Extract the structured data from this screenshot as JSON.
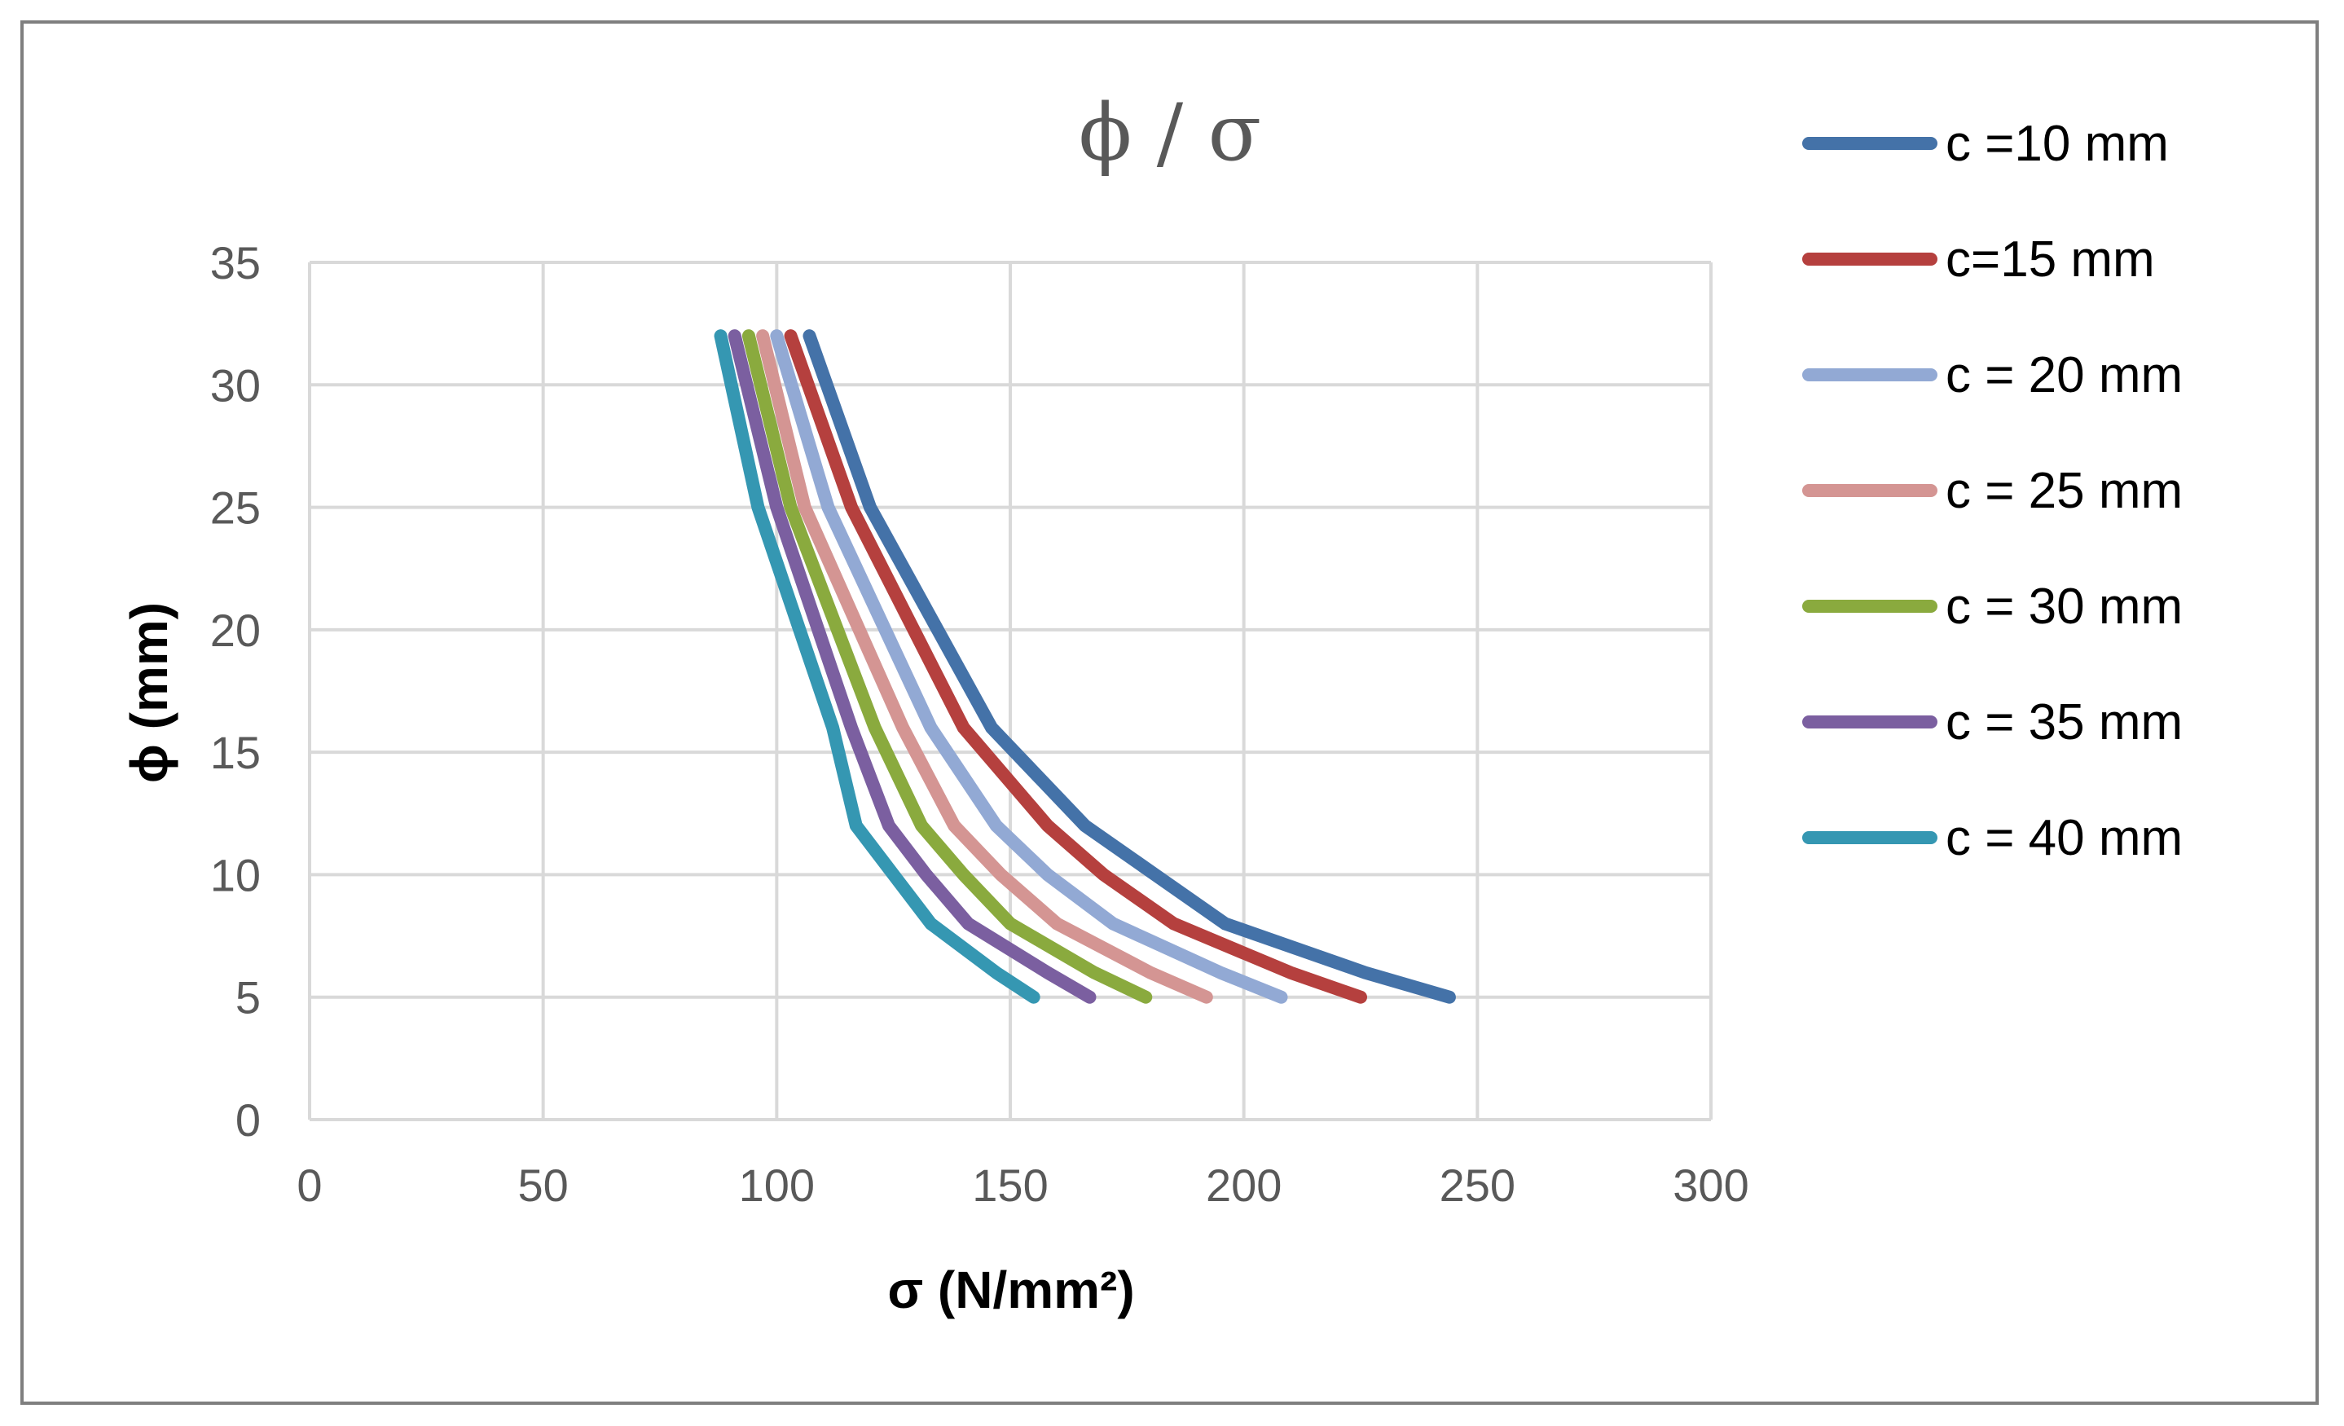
{
  "chart_data": {
    "type": "line",
    "title": "ϕ / σ",
    "xlabel": "σ (N/mm²)",
    "ylabel": "ϕ (mm)",
    "xlim": [
      0,
      300
    ],
    "ylim": [
      0,
      35
    ],
    "xticks": [
      0,
      50,
      100,
      150,
      200,
      250,
      300
    ],
    "yticks": [
      0,
      5,
      10,
      15,
      20,
      25,
      30,
      35
    ],
    "grid": true,
    "legend_position": "right",
    "y_points": [
      5,
      6,
      8,
      10,
      12,
      16,
      25,
      32
    ],
    "series": [
      {
        "name": "c =10 mm",
        "color": "#4472a8",
        "x": [
          244,
          226,
          196,
          181,
          166,
          146,
          120,
          107
        ]
      },
      {
        "name": "c=15 mm",
        "color": "#b5403e",
        "x": [
          225,
          210,
          185,
          170,
          158,
          140,
          116,
          103
        ]
      },
      {
        "name": "c = 20 mm",
        "color": "#92a9d4",
        "x": [
          208,
          195,
          172,
          158,
          147,
          133,
          111,
          100
        ]
      },
      {
        "name": "c = 25 mm",
        "color": "#d49593",
        "x": [
          192,
          180,
          160,
          148,
          138,
          127,
          106,
          97
        ]
      },
      {
        "name": "c = 30 mm",
        "color": "#8aaa3e",
        "x": [
          179,
          168,
          150,
          140,
          131,
          121,
          103,
          94
        ]
      },
      {
        "name": "c = 35 mm",
        "color": "#7b5fa0",
        "x": [
          167,
          158,
          141,
          132,
          124,
          116,
          100,
          91
        ]
      },
      {
        "name": "c = 40 mm",
        "color": "#3597b2",
        "x": [
          155,
          147,
          133,
          125,
          117,
          112,
          96,
          88
        ]
      }
    ]
  }
}
